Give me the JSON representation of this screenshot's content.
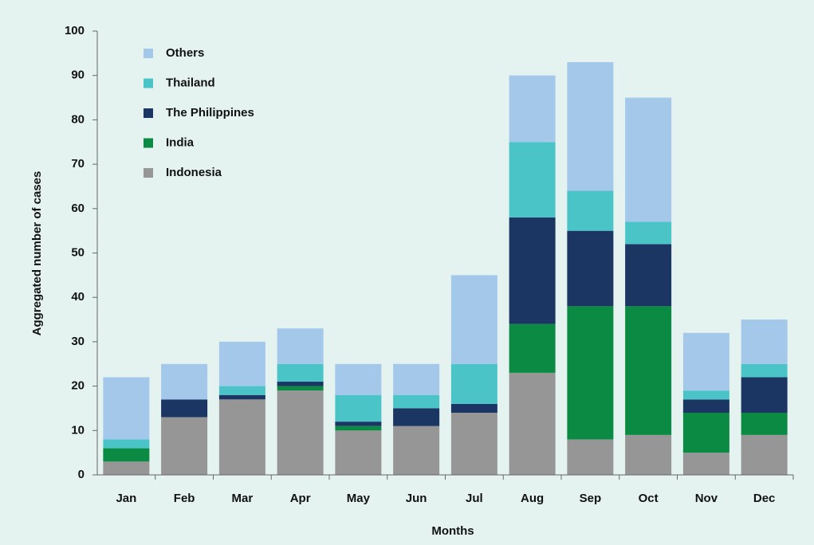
{
  "chart_data": {
    "type": "stacked_bar",
    "x_label": "Months",
    "y_label": "Aggregated number of cases",
    "categories": [
      "Jan",
      "Feb",
      "Mar",
      "Apr",
      "May",
      "Jun",
      "Jul",
      "Aug",
      "Sep",
      "Oct",
      "Nov",
      "Dec"
    ],
    "series": [
      {
        "name": "Indonesia",
        "color": "#969696",
        "values": [
          3,
          13,
          17,
          19,
          10,
          11,
          14,
          23,
          8,
          9,
          5,
          9
        ]
      },
      {
        "name": "India",
        "color": "#0a8a43",
        "values": [
          3,
          0,
          0,
          1,
          1,
          0,
          0,
          11,
          30,
          29,
          9,
          5
        ]
      },
      {
        "name": "The Philippines",
        "color": "#1c3664",
        "values": [
          0,
          4,
          1,
          1,
          1,
          4,
          2,
          24,
          17,
          14,
          3,
          8
        ]
      },
      {
        "name": "Thailand",
        "color": "#4bc4c8",
        "values": [
          2,
          0,
          2,
          4,
          6,
          3,
          9,
          17,
          9,
          5,
          2,
          3
        ]
      },
      {
        "name": "Others",
        "color": "#a3c8ea",
        "values": [
          14,
          8,
          10,
          8,
          7,
          7,
          20,
          15,
          29,
          28,
          13,
          10
        ]
      }
    ],
    "ylim": [
      0,
      100
    ],
    "yticks": [
      0,
      10,
      20,
      30,
      40,
      50,
      60,
      70,
      80,
      90,
      100
    ],
    "legend": "upper-left"
  }
}
